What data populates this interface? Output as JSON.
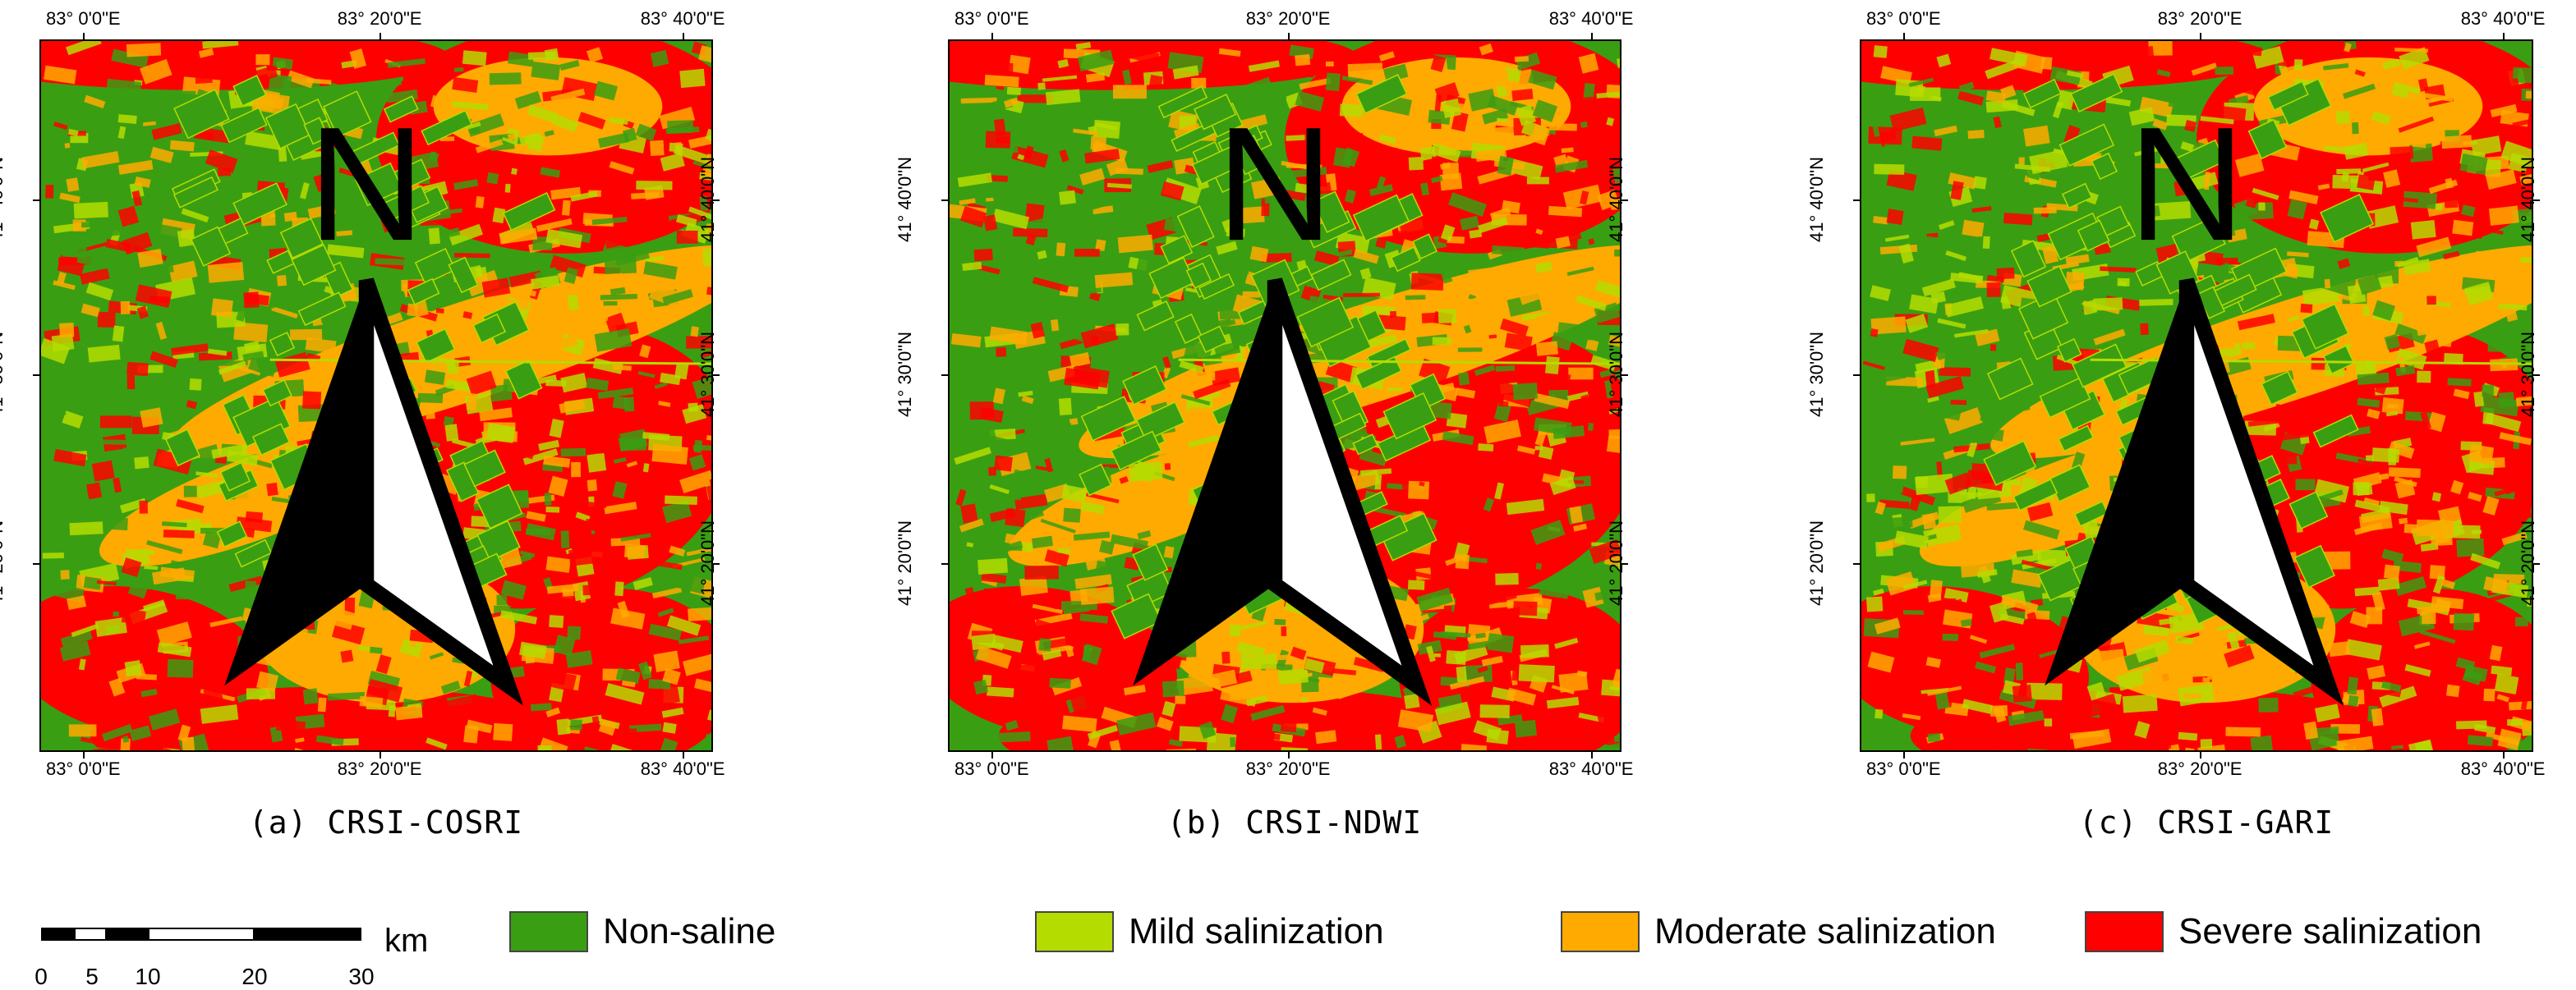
{
  "panels": [
    {
      "caption": "(a)  CRSI-COSRI",
      "id": "a",
      "variant": 0
    },
    {
      "caption": "(b)  CRSI-NDWI",
      "id": "b",
      "variant": 1
    },
    {
      "caption": "(c)  CRSI-GARI",
      "id": "c",
      "variant": 2
    }
  ],
  "axes": {
    "top_labels": [
      "83° 0'0\"E",
      "83° 20'0\"E",
      "83° 40'0\"E"
    ],
    "bottom_labels": [
      "83° 0'0\"E",
      "83° 20'0\"E",
      "83° 40'0\"E"
    ],
    "left_labels": [
      "41° 40'0\"N",
      "41° 30'0\"N",
      "41° 20'0\"N"
    ],
    "right_labels": [
      "41° 40'0\"N",
      "41° 30'0\"N",
      "41° 20'0\"N"
    ]
  },
  "north_label": "N",
  "scalebar": {
    "unit": "km",
    "ticks": [
      "0",
      "5",
      "10",
      "20",
      "30"
    ]
  },
  "legend": [
    {
      "label": "Non-saline",
      "color": "#3a9e12"
    },
    {
      "label": "Mild salinization",
      "color": "#b5dc00"
    },
    {
      "label": "Moderate salinization",
      "color": "#ffaa00"
    },
    {
      "label": "Severe salinization",
      "color": "#ff0000"
    }
  ]
}
